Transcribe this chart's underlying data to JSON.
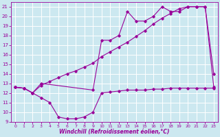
{
  "xlabel": "Windchill (Refroidissement éolien,°C)",
  "bg_color": "#cce8f0",
  "grid_color": "#ffffff",
  "line_color": "#990099",
  "xlim": [
    -0.5,
    23.5
  ],
  "ylim": [
    9,
    21.5
  ],
  "yticks": [
    9,
    10,
    11,
    12,
    13,
    14,
    15,
    16,
    17,
    18,
    19,
    20,
    21
  ],
  "xticks": [
    0,
    1,
    2,
    3,
    4,
    5,
    6,
    7,
    8,
    9,
    10,
    11,
    12,
    13,
    14,
    15,
    16,
    17,
    18,
    19,
    20,
    21,
    22,
    23
  ],
  "curve1_x": [
    0,
    1,
    2,
    3,
    4,
    5,
    6,
    7,
    8,
    9,
    10,
    11,
    12,
    13,
    14,
    15,
    16,
    17,
    18,
    19,
    20,
    21,
    22,
    23
  ],
  "curve1_y": [
    12.6,
    12.5,
    12.0,
    11.5,
    11.0,
    9.5,
    9.3,
    9.3,
    9.5,
    10.0,
    12.0,
    12.1,
    12.2,
    12.3,
    12.3,
    12.3,
    12.4,
    12.4,
    12.5,
    12.5,
    12.5,
    12.5,
    12.5,
    12.5
  ],
  "curve2_x": [
    0,
    1,
    2,
    3,
    9,
    10,
    11,
    12,
    13,
    14,
    15,
    16,
    17,
    18,
    19,
    20,
    21,
    22,
    23
  ],
  "curve2_y": [
    12.6,
    12.5,
    12.0,
    13.0,
    12.3,
    17.5,
    17.5,
    18.0,
    20.5,
    19.5,
    19.5,
    20.0,
    21.0,
    20.5,
    20.5,
    21.0,
    21.0,
    21.0,
    14.0
  ],
  "curve3_x": [
    0,
    1,
    2,
    3,
    4,
    5,
    6,
    7,
    8,
    9,
    10,
    11,
    12,
    13,
    14,
    15,
    16,
    17,
    18,
    19,
    20,
    21,
    22,
    23
  ],
  "curve3_y": [
    12.6,
    12.5,
    12.0,
    12.8,
    13.2,
    13.6,
    14.0,
    14.3,
    14.7,
    15.1,
    15.8,
    16.3,
    16.8,
    17.3,
    17.9,
    18.5,
    19.2,
    19.8,
    20.3,
    20.8,
    21.0,
    21.0,
    21.0,
    12.6
  ]
}
